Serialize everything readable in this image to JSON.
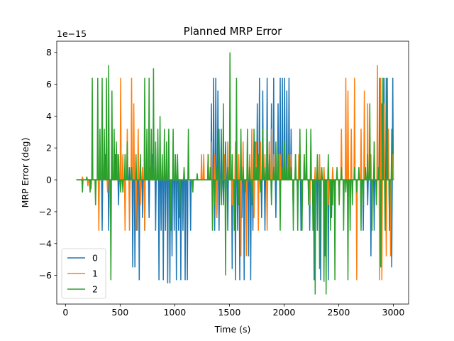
{
  "chart_data": {
    "type": "line",
    "title": "Planned MRP Error",
    "xlabel": "Time (s)",
    "ylabel": "MRP Error (deg)",
    "offset_text": "1e−15",
    "y_scale": 1e-15,
    "xlim": [
      -80,
      3140
    ],
    "ylim": [
      -7.8,
      8.7
    ],
    "xticks": [
      0,
      500,
      1000,
      1500,
      2000,
      2500,
      3000
    ],
    "xtick_labels": [
      "0",
      "500",
      "1000",
      "1500",
      "2000",
      "2500",
      "3000"
    ],
    "yticks": [
      -6,
      -4,
      -2,
      0,
      2,
      4,
      6,
      8
    ],
    "ytick_labels": [
      "−6",
      "−4",
      "−2",
      "0",
      "2",
      "4",
      "6",
      "8"
    ],
    "grid": false,
    "legend_position": "lower-left",
    "colors": [
      "#1f77b4",
      "#ff7f0e",
      "#2ca02c"
    ],
    "series": [
      {
        "name": "0",
        "spikes": [
          [
            330,
            -3.2
          ],
          [
            360,
            1.6
          ],
          [
            390,
            -3.2
          ],
          [
            420,
            0.8
          ],
          [
            450,
            1.6
          ],
          [
            480,
            -1.6
          ],
          [
            580,
            0.8
          ],
          [
            610,
            -5.5
          ],
          [
            630,
            -5.5
          ],
          [
            650,
            -3.2
          ],
          [
            670,
            -6.3
          ],
          [
            700,
            -2.4
          ],
          [
            720,
            -3.2
          ],
          [
            760,
            -2.4
          ],
          [
            790,
            1.6
          ],
          [
            820,
            -3.2
          ],
          [
            850,
            -6.3
          ],
          [
            870,
            -3.2
          ],
          [
            890,
            -6.3
          ],
          [
            910,
            -3.2
          ],
          [
            930,
            -6.5
          ],
          [
            950,
            -6.5
          ],
          [
            970,
            -4.8
          ],
          [
            990,
            -3.2
          ],
          [
            1010,
            -6.3
          ],
          [
            1030,
            -3.2
          ],
          [
            1050,
            -6.3
          ],
          [
            1070,
            -3.2
          ],
          [
            1090,
            -6.3
          ],
          [
            1110,
            -6.3
          ],
          [
            1140,
            -3.2
          ],
          [
            1330,
            4.8
          ],
          [
            1350,
            6.4
          ],
          [
            1360,
            -3.2
          ],
          [
            1370,
            6.4
          ],
          [
            1380,
            -2.4
          ],
          [
            1390,
            5.6
          ],
          [
            1400,
            -3.2
          ],
          [
            1420,
            3.2
          ],
          [
            1440,
            -1.6
          ],
          [
            1460,
            2.4
          ],
          [
            1480,
            -3.2
          ],
          [
            1500,
            1.6
          ],
          [
            1520,
            -5.6
          ],
          [
            1550,
            -6.3
          ],
          [
            1570,
            -3.2
          ],
          [
            1590,
            -6.3
          ],
          [
            1610,
            -2.4
          ],
          [
            1630,
            -6.3
          ],
          [
            1650,
            -3.2
          ],
          [
            1670,
            -4.8
          ],
          [
            1690,
            -6.3
          ],
          [
            1710,
            -3.2
          ],
          [
            1730,
            2.4
          ],
          [
            1750,
            4.8
          ],
          [
            1770,
            6.4
          ],
          [
            1790,
            -2.4
          ],
          [
            1800,
            5.6
          ],
          [
            1820,
            -3.2
          ],
          [
            1840,
            6.4
          ],
          [
            1860,
            2.4
          ],
          [
            1880,
            4.8
          ],
          [
            1900,
            6.4
          ],
          [
            1920,
            -2.4
          ],
          [
            1940,
            4.8
          ],
          [
            1960,
            6.4
          ],
          [
            1980,
            6.4
          ],
          [
            2000,
            6.4
          ],
          [
            2020,
            5.6
          ],
          [
            2040,
            6.4
          ],
          [
            2060,
            3.2
          ],
          [
            2080,
            -2.4
          ],
          [
            2100,
            1.6
          ],
          [
            2120,
            -1.6
          ],
          [
            2150,
            -3.2
          ],
          [
            2230,
            -3.2
          ],
          [
            2270,
            -6.3
          ],
          [
            2300,
            -3.2
          ],
          [
            2330,
            -6.3
          ],
          [
            2370,
            -4.8
          ],
          [
            2400,
            -6.3
          ],
          [
            2430,
            -2.4
          ],
          [
            2460,
            -1.6
          ],
          [
            2720,
            -3.2
          ],
          [
            2760,
            -1.6
          ],
          [
            2790,
            -4.8
          ],
          [
            2820,
            -3.2
          ],
          [
            2850,
            2.4
          ],
          [
            2870,
            6.4
          ],
          [
            2890,
            4.8
          ],
          [
            2910,
            6.4
          ],
          [
            2930,
            6.4
          ],
          [
            2960,
            -3.2
          ],
          [
            2980,
            -5.5
          ],
          [
            2990,
            6.4
          ]
        ]
      },
      {
        "name": "1",
        "spikes": [
          [
            150,
            0.2
          ],
          [
            200,
            -0.4
          ],
          [
            230,
            -0.6
          ],
          [
            270,
            -0.3
          ],
          [
            300,
            -3.2
          ],
          [
            350,
            1.6
          ],
          [
            380,
            -0.8
          ],
          [
            420,
            1.6
          ],
          [
            440,
            0.8
          ],
          [
            470,
            1.6
          ],
          [
            500,
            6.4
          ],
          [
            520,
            1.6
          ],
          [
            540,
            -3.2
          ],
          [
            560,
            3.2
          ],
          [
            580,
            -3.2
          ],
          [
            600,
            6.4
          ],
          [
            620,
            4.8
          ],
          [
            640,
            -3.2
          ],
          [
            660,
            3.2
          ],
          [
            680,
            -1.6
          ],
          [
            700,
            0.8
          ],
          [
            720,
            -3.2
          ],
          [
            740,
            2.4
          ],
          [
            770,
            0.8
          ],
          [
            1240,
            1.6
          ],
          [
            1260,
            1.6
          ],
          [
            1300,
            1.6
          ],
          [
            1330,
            2.4
          ],
          [
            1360,
            1.6
          ],
          [
            1380,
            -2.4
          ],
          [
            1400,
            1.6
          ],
          [
            1420,
            -1.6
          ],
          [
            1450,
            1.6
          ],
          [
            1480,
            2.4
          ],
          [
            1500,
            1.6
          ],
          [
            1520,
            -1.6
          ],
          [
            1550,
            2.4
          ],
          [
            1580,
            1.6
          ],
          [
            1600,
            -4.8
          ],
          [
            1620,
            2.4
          ],
          [
            1650,
            -4.8
          ],
          [
            1680,
            1.6
          ],
          [
            1700,
            3.2
          ],
          [
            1720,
            -2.4
          ],
          [
            1740,
            2.4
          ],
          [
            1760,
            -3.2
          ],
          [
            1780,
            2.4
          ],
          [
            1800,
            3.2
          ],
          [
            1820,
            1.6
          ],
          [
            1840,
            -3.2
          ],
          [
            1860,
            2.4
          ],
          [
            1880,
            3.2
          ],
          [
            1900,
            1.6
          ],
          [
            1920,
            0.8
          ],
          [
            1940,
            1.6
          ],
          [
            1960,
            1.6
          ],
          [
            1980,
            0.8
          ],
          [
            2000,
            0.8
          ],
          [
            2030,
            1.6
          ],
          [
            2060,
            1.6
          ],
          [
            2080,
            -1.6
          ],
          [
            2100,
            0.8
          ],
          [
            2130,
            1.6
          ],
          [
            2180,
            1.6
          ],
          [
            2230,
            -1.6
          ],
          [
            2280,
            0.8
          ],
          [
            2320,
            1.6
          ],
          [
            2360,
            0.8
          ],
          [
            2400,
            -1.6
          ],
          [
            2440,
            0.8
          ],
          [
            2500,
            -1.6
          ],
          [
            2520,
            3.2
          ],
          [
            2560,
            6.4
          ],
          [
            2580,
            5.6
          ],
          [
            2610,
            3.2
          ],
          [
            2640,
            6.4
          ],
          [
            2660,
            -6.3
          ],
          [
            2700,
            3.2
          ],
          [
            2730,
            5.6
          ],
          [
            2760,
            4.8
          ],
          [
            2790,
            1.6
          ],
          [
            2820,
            2.4
          ],
          [
            2850,
            7.2
          ],
          [
            2870,
            -6.3
          ],
          [
            2880,
            6.4
          ],
          [
            2890,
            -6.3
          ],
          [
            2910,
            4.8
          ],
          [
            2930,
            -4.8
          ],
          [
            2950,
            3.2
          ],
          [
            2970,
            -4.8
          ],
          [
            2990,
            1.6
          ]
        ]
      },
      {
        "name": "2",
        "spikes": [
          [
            150,
            -0.8
          ],
          [
            190,
            0.2
          ],
          [
            220,
            -0.8
          ],
          [
            240,
            6.4
          ],
          [
            270,
            -1.6
          ],
          [
            290,
            6.4
          ],
          [
            310,
            3.2
          ],
          [
            330,
            6.4
          ],
          [
            350,
            3.2
          ],
          [
            370,
            6.4
          ],
          [
            390,
            7.2
          ],
          [
            410,
            -6.3
          ],
          [
            420,
            5.6
          ],
          [
            440,
            3.2
          ],
          [
            460,
            2.4
          ],
          [
            480,
            1.6
          ],
          [
            500,
            -0.8
          ],
          [
            520,
            -0.8
          ],
          [
            540,
            1.6
          ],
          [
            560,
            2.4
          ],
          [
            600,
            0.8
          ],
          [
            640,
            1.6
          ],
          [
            680,
            1.6
          ],
          [
            720,
            6.4
          ],
          [
            740,
            3.2
          ],
          [
            760,
            6.4
          ],
          [
            780,
            3.2
          ],
          [
            800,
            7.0
          ],
          [
            820,
            2.4
          ],
          [
            840,
            3.2
          ],
          [
            860,
            4.0
          ],
          [
            880,
            1.6
          ],
          [
            900,
            3.2
          ],
          [
            920,
            2.4
          ],
          [
            940,
            3.2
          ],
          [
            960,
            -3.2
          ],
          [
            980,
            3.2
          ],
          [
            1000,
            1.6
          ],
          [
            1020,
            1.6
          ],
          [
            1040,
            -2.4
          ],
          [
            1080,
            0.8
          ],
          [
            1120,
            3.2
          ],
          [
            1160,
            -0.8
          ],
          [
            1200,
            0.4
          ],
          [
            1300,
            1.6
          ],
          [
            1320,
            0.8
          ],
          [
            1340,
            -3.2
          ],
          [
            1360,
            -1.6
          ],
          [
            1380,
            0.8
          ],
          [
            1400,
            3.2
          ],
          [
            1420,
            -1.6
          ],
          [
            1440,
            4.8
          ],
          [
            1460,
            -6.0
          ],
          [
            1480,
            0.8
          ],
          [
            1500,
            8.0
          ],
          [
            1520,
            1.6
          ],
          [
            1540,
            -3.2
          ],
          [
            1560,
            6.4
          ],
          [
            1580,
            -1.6
          ],
          [
            1600,
            3.2
          ],
          [
            1620,
            0.8
          ],
          [
            1640,
            -0.8
          ],
          [
            1660,
            3.2
          ],
          [
            1680,
            0.8
          ],
          [
            1700,
            -1.6
          ],
          [
            1720,
            3.2
          ],
          [
            1740,
            0.8
          ],
          [
            1760,
            1.6
          ],
          [
            1780,
            -0.8
          ],
          [
            1800,
            3.2
          ],
          [
            1820,
            0.8
          ],
          [
            1840,
            3.2
          ],
          [
            1860,
            1.6
          ],
          [
            1880,
            -1.6
          ],
          [
            1900,
            0.8
          ],
          [
            1920,
            2.4
          ],
          [
            1940,
            1.6
          ],
          [
            1960,
            -3.2
          ],
          [
            1980,
            0.8
          ],
          [
            2000,
            2.4
          ],
          [
            2020,
            0.8
          ],
          [
            2040,
            1.6
          ],
          [
            2060,
            0.8
          ],
          [
            2080,
            -3.2
          ],
          [
            2100,
            1.6
          ],
          [
            2120,
            -3.2
          ],
          [
            2140,
            3.2
          ],
          [
            2160,
            -3.2
          ],
          [
            2180,
            1.6
          ],
          [
            2200,
            3.2
          ],
          [
            2220,
            -1.6
          ],
          [
            2240,
            3.2
          ],
          [
            2260,
            -3.2
          ],
          [
            2280,
            -7.2
          ],
          [
            2300,
            1.6
          ],
          [
            2320,
            -5.6
          ],
          [
            2340,
            0.8
          ],
          [
            2360,
            -6.4
          ],
          [
            2380,
            -7.2
          ],
          [
            2400,
            1.6
          ],
          [
            2420,
            -3.2
          ],
          [
            2440,
            -1.6
          ],
          [
            2460,
            -6.3
          ],
          [
            2480,
            0.8
          ],
          [
            2500,
            -1.6
          ],
          [
            2520,
            0.8
          ],
          [
            2540,
            -3.2
          ],
          [
            2560,
            -0.8
          ],
          [
            2580,
            -6.3
          ],
          [
            2600,
            -3.2
          ],
          [
            2620,
            -1.6
          ],
          [
            2640,
            0.8
          ],
          [
            2660,
            -0.8
          ],
          [
            2680,
            0.8
          ],
          [
            2700,
            -3.2
          ],
          [
            2720,
            -1.6
          ],
          [
            2740,
            0.8
          ],
          [
            2760,
            1.6
          ],
          [
            2780,
            4.8
          ],
          [
            2800,
            -3.2
          ],
          [
            2820,
            2.4
          ],
          [
            2840,
            -1.6
          ],
          [
            2860,
            0.8
          ],
          [
            2880,
            -5.5
          ],
          [
            2900,
            6.4
          ],
          [
            2920,
            -3.2
          ],
          [
            2940,
            6.4
          ],
          [
            2960,
            -3.2
          ],
          [
            2980,
            3.2
          ]
        ]
      }
    ]
  }
}
